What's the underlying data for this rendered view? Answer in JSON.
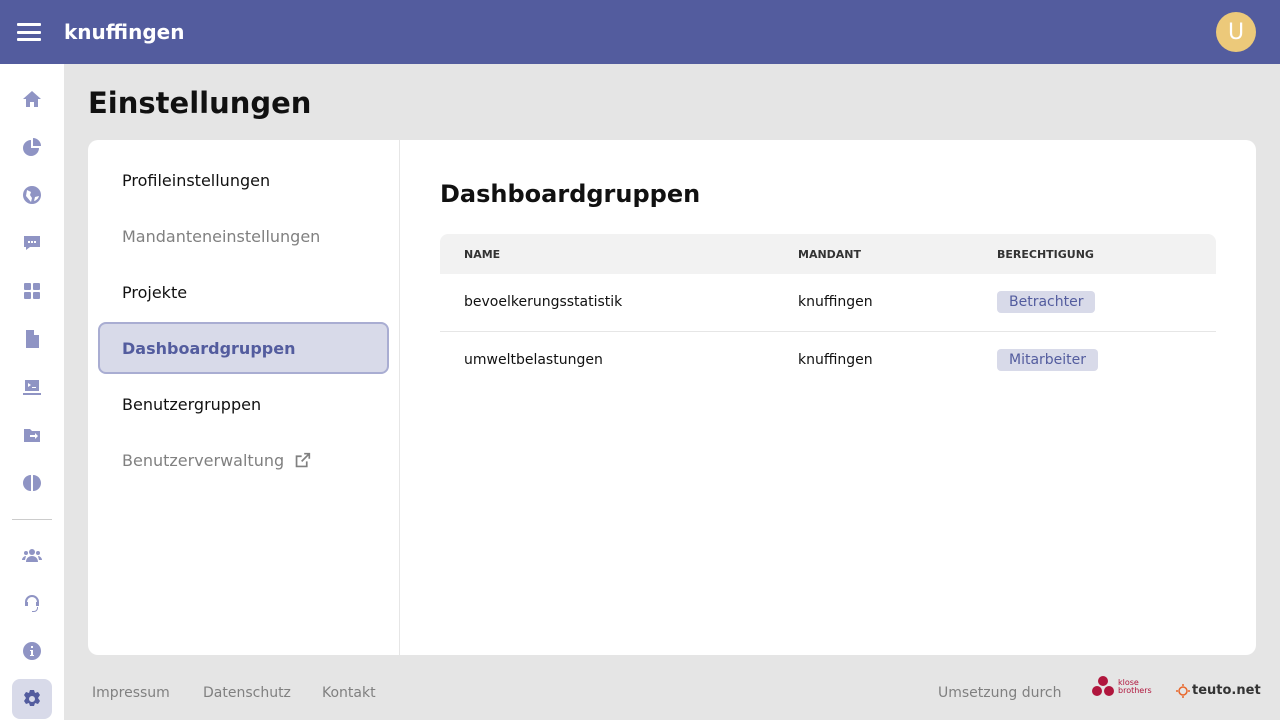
{
  "header": {
    "app_name": "knuffingen",
    "avatar_initial": "U",
    "brand_color": "#535c9e",
    "avatar_color": "#ecc97a"
  },
  "sidebar": {
    "icons": [
      "home-icon",
      "chart-pie-icon",
      "globe-icon",
      "chat-icon",
      "dashboard-icon",
      "file-icon",
      "terminal-icon",
      "folder-move-icon",
      "brain-icon",
      "users-icon",
      "headset-icon",
      "info-icon",
      "settings-icon"
    ],
    "active": "settings-icon"
  },
  "page": {
    "title": "Einstellungen"
  },
  "settings_nav": [
    {
      "label": "Profileinstellungen"
    },
    {
      "label": "Mandanteneinstellungen",
      "muted": true
    },
    {
      "label": "Projekte"
    },
    {
      "label": "Dashboardgruppen",
      "active": true
    },
    {
      "label": "Benutzergruppen"
    },
    {
      "label": "Benutzerverwaltung",
      "muted": true,
      "external": true
    }
  ],
  "section": {
    "title": "Dashboardgruppen",
    "columns": [
      "NAME",
      "MANDANT",
      "BERECHTIGUNG"
    ],
    "rows": [
      {
        "name": "bevoelkerungsstatistik",
        "mandant": "knuffingen",
        "permission": "Betrachter"
      },
      {
        "name": "umweltbelastungen",
        "mandant": "knuffingen",
        "permission": "Mitarbeiter"
      }
    ]
  },
  "footer": {
    "links": [
      "Impressum",
      "Datenschutz",
      "Kontakt"
    ],
    "credit": "Umsetzung durch",
    "logos": [
      "klose brothers",
      "teuto.net"
    ]
  }
}
